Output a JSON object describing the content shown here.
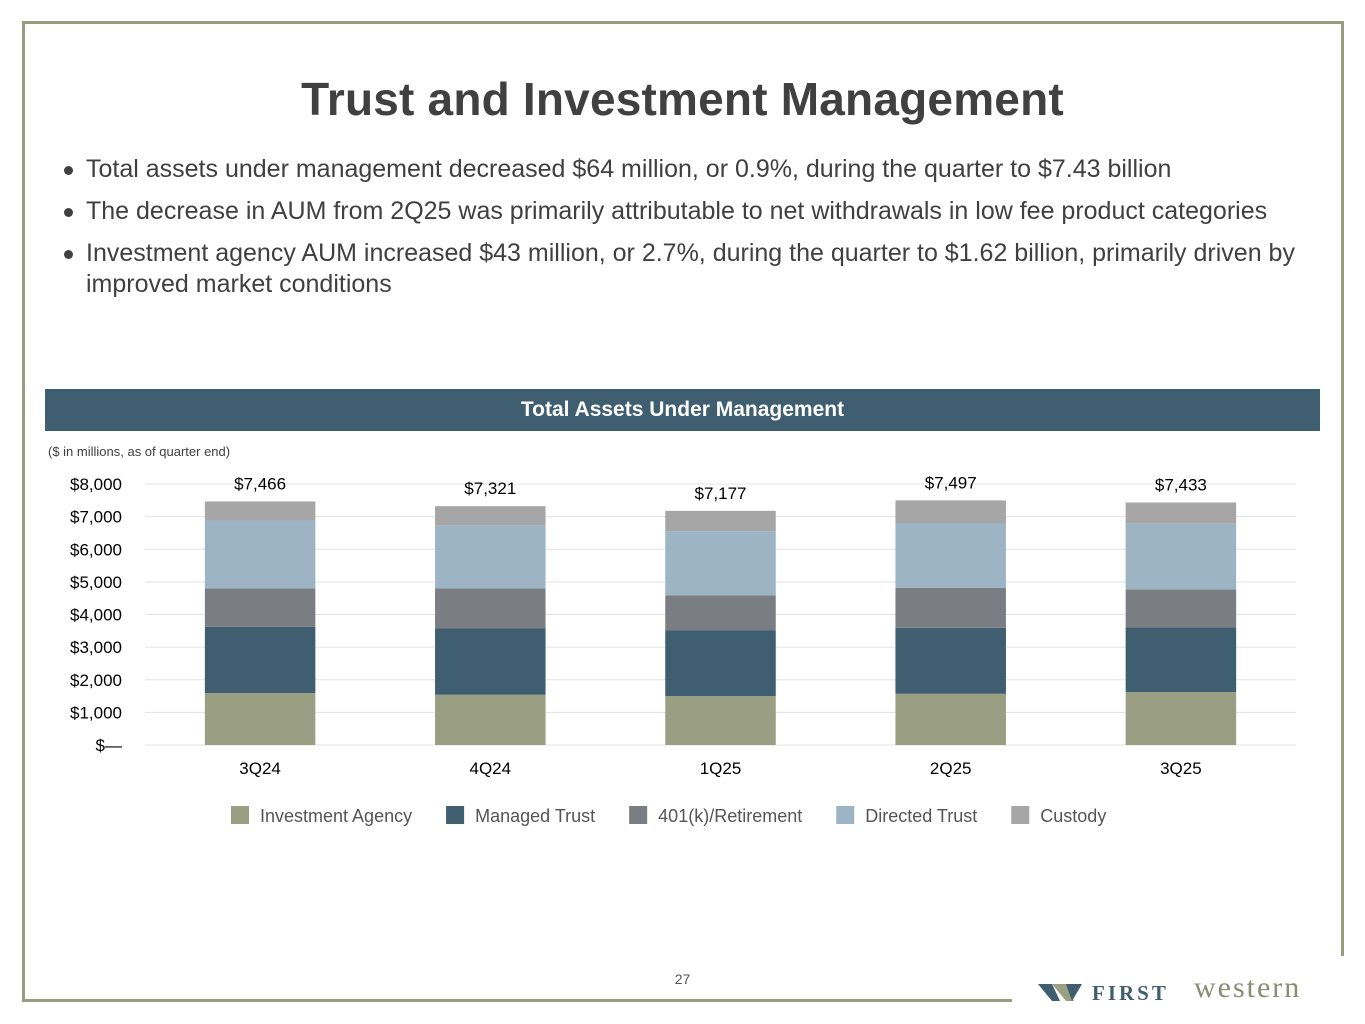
{
  "title": "Trust and Investment Management",
  "bullets": [
    "Total assets under management decreased $64 million, or 0.9%, during the quarter to $7.43 billion",
    "The decrease in AUM from 2Q25 was primarily attributable to net withdrawals in low fee product categories",
    "Investment agency AUM increased $43 million, or 2.7%, during the quarter to $1.62 billion, primarily driven by improved market conditions"
  ],
  "chart_header": "Total Assets Under Management",
  "units_note": "($ in millions, as of quarter end)",
  "page_number": "27",
  "logo": {
    "first": "FIRST",
    "western": "western"
  },
  "colors": {
    "frame": "#9a9c82",
    "banner": "#3f5e6f",
    "investment_agency": "#9a9e82",
    "managed_trust": "#3f5e6f",
    "retirement": "#7a7e82",
    "directed_trust": "#9db4c5",
    "custody": "#a6a6a6"
  },
  "chart_data": {
    "type": "bar",
    "stacked": true,
    "title": "Total Assets Under Management",
    "xlabel": "",
    "ylabel": "",
    "ylim": [
      0,
      8000
    ],
    "y_ticks": [
      0,
      1000,
      2000,
      3000,
      4000,
      5000,
      6000,
      7000,
      8000
    ],
    "y_tick_labels": [
      "$—",
      "$1,000",
      "$2,000",
      "$3,000",
      "$4,000",
      "$5,000",
      "$6,000",
      "$7,000",
      "$8,000"
    ],
    "grid": true,
    "legend_position": "bottom",
    "categories": [
      "3Q24",
      "4Q24",
      "1Q25",
      "2Q25",
      "3Q25"
    ],
    "totals": [
      7466,
      7321,
      7177,
      7497,
      7433
    ],
    "total_labels": [
      "$7,466",
      "$7,321",
      "$7,177",
      "$7,497",
      "$7,433"
    ],
    "series": [
      {
        "name": "Investment Agency",
        "color": "#9a9e82",
        "values": [
          1590,
          1540,
          1500,
          1570,
          1620
        ]
      },
      {
        "name": "Managed Trust",
        "color": "#3f5e6f",
        "values": [
          2030,
          2030,
          2010,
          2020,
          1980
        ]
      },
      {
        "name": "401(k)/Retirement",
        "color": "#7a7e82",
        "values": [
          1180,
          1230,
          1080,
          1230,
          1170
        ]
      },
      {
        "name": "Directed Trust",
        "color": "#9db4c5",
        "values": [
          2080,
          1940,
          1960,
          1970,
          2010
        ]
      },
      {
        "name": "Custody",
        "color": "#a6a6a6",
        "values": [
          586,
          581,
          627,
          707,
          653
        ]
      }
    ]
  }
}
